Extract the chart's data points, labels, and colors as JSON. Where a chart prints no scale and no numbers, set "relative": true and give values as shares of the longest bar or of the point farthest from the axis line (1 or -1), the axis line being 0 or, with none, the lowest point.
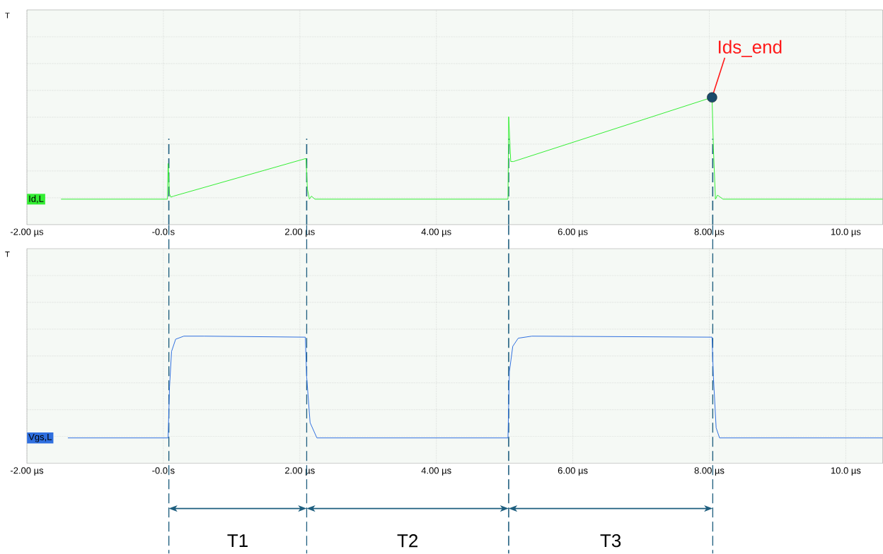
{
  "chart_data": [
    {
      "type": "line",
      "relative": true,
      "xlim": [
        -2,
        10.54
      ],
      "xticks": [
        {
          "value": -2,
          "label": "-2.00 µs"
        },
        {
          "value": 0,
          "label": "-0.0 s"
        },
        {
          "value": 2,
          "label": "2.00 µs"
        },
        {
          "value": 4,
          "label": "4.00 µs"
        },
        {
          "value": 6,
          "label": "6.00 µs"
        },
        {
          "value": 8,
          "label": "8.00 µs"
        },
        {
          "value": 10,
          "label": "10.0 µs"
        }
      ],
      "grid": true,
      "series": [
        {
          "name": "Id,L",
          "color": "#33ee33",
          "x": [
            -1.5,
            0.06,
            0.07,
            0.09,
            0.11,
            0.15,
            2.09,
            2.11,
            2.14,
            2.17,
            2.22,
            5.05,
            5.06,
            5.09,
            5.13,
            8.04,
            8.06,
            8.09,
            8.12,
            8.2,
            10.54
          ],
          "values": [
            0,
            0,
            0.35,
            0.05,
            0.02,
            0.03,
            0.4,
            0.1,
            0,
            0.03,
            0,
            0,
            0.81,
            0.37,
            0.37,
            1.0,
            0.5,
            0,
            0.04,
            0,
            0
          ]
        }
      ],
      "ref_lines": [
        {
          "axis": "x",
          "value": 0.08,
          "color": "#1f5f7f",
          "line_style": "dashed"
        },
        {
          "axis": "x",
          "value": 2.1,
          "color": "#1f5f7f",
          "line_style": "dashed"
        },
        {
          "axis": "x",
          "value": 5.06,
          "color": "#1f5f7f",
          "line_style": "dashed"
        },
        {
          "axis": "x",
          "value": 8.05,
          "color": "#1f5f7f",
          "line_style": "dashed"
        }
      ],
      "annotations": [
        "T",
        {
          "text": "Ids_end",
          "x": 8.04,
          "y": 1.0
        }
      ]
    },
    {
      "type": "line",
      "relative": true,
      "xlim": [
        -2,
        10.54
      ],
      "xticks": [
        {
          "value": -2,
          "label": "-2.00 µs"
        },
        {
          "value": 0,
          "label": "-0.0 s"
        },
        {
          "value": 2,
          "label": "2.00 µs"
        },
        {
          "value": 4,
          "label": "4.00 µs"
        },
        {
          "value": 6,
          "label": "6.00 µs"
        },
        {
          "value": 8,
          "label": "8.00 µs"
        },
        {
          "value": 10,
          "label": "10.0 µs"
        }
      ],
      "grid": true,
      "series": [
        {
          "name": "Vgs,L",
          "color": "#2f6fdf",
          "x": [
            -1.4,
            0.07,
            0.09,
            0.12,
            0.18,
            0.3,
            0.6,
            2.08,
            2.1,
            2.15,
            2.25,
            5.05,
            5.07,
            5.12,
            5.2,
            5.4,
            8.04,
            8.06,
            8.1,
            8.15,
            10.54
          ],
          "values": [
            0,
            0,
            0.5,
            0.85,
            0.97,
            1.0,
            1.0,
            0.99,
            0.6,
            0.15,
            0,
            0,
            0.65,
            0.9,
            0.98,
            1.0,
            0.99,
            0.6,
            0.1,
            0,
            0
          ]
        }
      ],
      "ref_lines": [
        {
          "axis": "x",
          "value": 0.08,
          "color": "#1f5f7f",
          "line_style": "dashed"
        },
        {
          "axis": "x",
          "value": 2.1,
          "color": "#1f5f7f",
          "line_style": "dashed"
        },
        {
          "axis": "x",
          "value": 5.06,
          "color": "#1f5f7f",
          "line_style": "dashed"
        },
        {
          "axis": "x",
          "value": 8.05,
          "color": "#1f5f7f",
          "line_style": "dashed"
        }
      ],
      "annotations": [
        "T",
        "T1",
        "T2",
        "T3"
      ]
    }
  ]
}
